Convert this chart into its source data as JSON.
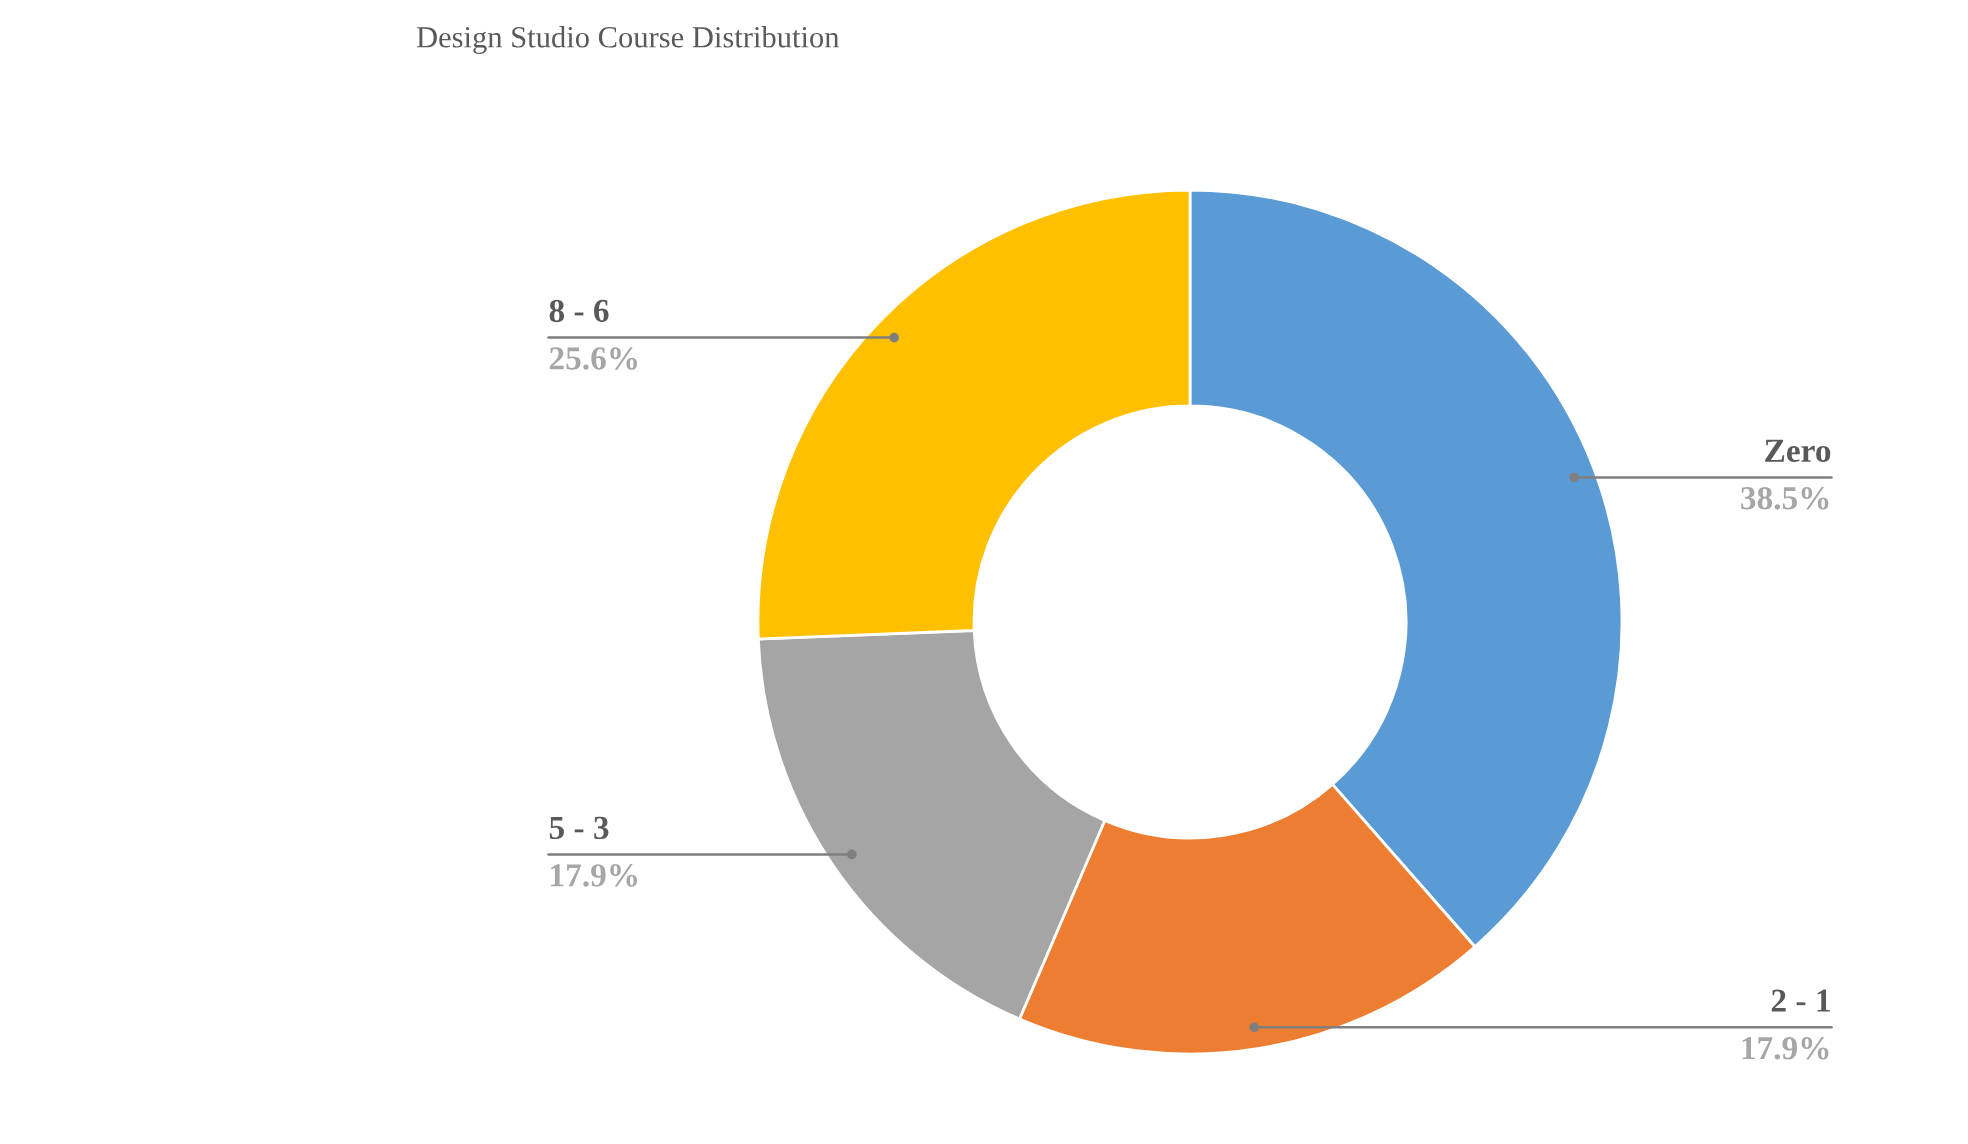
{
  "chart_data": {
    "type": "donut",
    "title": "Design Studio Course Distribution",
    "categories": [
      "Zero",
      "2 - 1",
      "5 - 3",
      "8 - 6"
    ],
    "values": [
      38.5,
      17.9,
      17.9,
      25.6
    ],
    "value_labels": [
      "38.5%",
      "17.9%",
      "17.9%",
      "25.6%"
    ],
    "colors": [
      "#5b9bd5",
      "#ed7d31",
      "#a5a5a5",
      "#ffc000"
    ]
  }
}
